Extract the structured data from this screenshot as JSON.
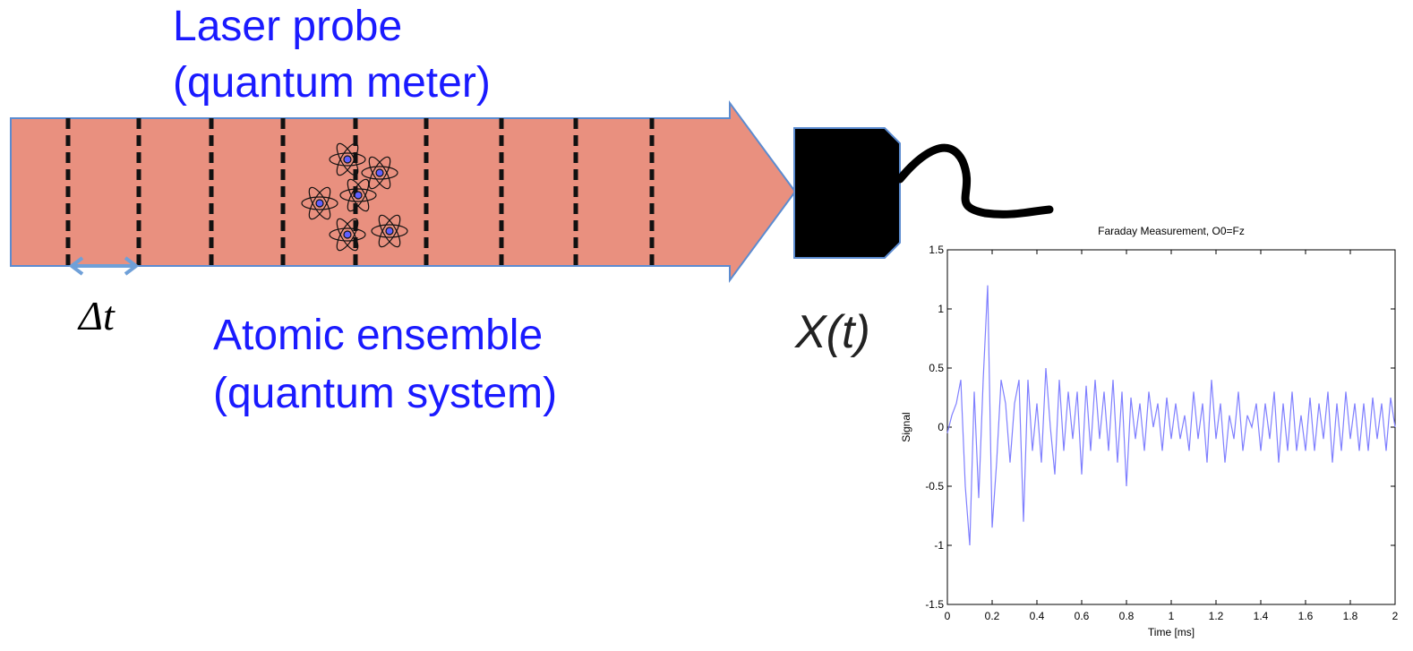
{
  "labels": {
    "probe_line1": "Laser probe",
    "probe_line2": "(quantum meter)",
    "interval": "Δt",
    "ensemble_line1": "Atomic ensemble",
    "ensemble_line2": "(quantum system)",
    "output": "X(t)"
  },
  "chart_data": {
    "type": "line",
    "title": "Faraday Measurement, O0=Fz",
    "x_label": "Time [ms]",
    "y_label": "Signal",
    "x": [
      0,
      0.02,
      0.04,
      0.06,
      0.08,
      0.1,
      0.12,
      0.14,
      0.16,
      0.18,
      0.2,
      0.22,
      0.24,
      0.26,
      0.28,
      0.3,
      0.32,
      0.34,
      0.36,
      0.38,
      0.4,
      0.42,
      0.44,
      0.46,
      0.48,
      0.5,
      0.52,
      0.54,
      0.56,
      0.58,
      0.6,
      0.62,
      0.64,
      0.66,
      0.68,
      0.7,
      0.72,
      0.74,
      0.76,
      0.78,
      0.8,
      0.82,
      0.84,
      0.86,
      0.88,
      0.9,
      0.92,
      0.94,
      0.96,
      0.98,
      1,
      1.02,
      1.04,
      1.06,
      1.08,
      1.1,
      1.12,
      1.14,
      1.16,
      1.18,
      1.2,
      1.22,
      1.24,
      1.26,
      1.28,
      1.3,
      1.32,
      1.34,
      1.36,
      1.38,
      1.4,
      1.42,
      1.44,
      1.46,
      1.48,
      1.5,
      1.52,
      1.54,
      1.56,
      1.58,
      1.6,
      1.62,
      1.64,
      1.66,
      1.68,
      1.7,
      1.72,
      1.74,
      1.76,
      1.78,
      1.8,
      1.82,
      1.84,
      1.86,
      1.88,
      1.9,
      1.92,
      1.94,
      1.96,
      1.98,
      2
    ],
    "series": [
      {
        "name": "Signal",
        "color": "#7f7fff",
        "values": [
          -0.05,
          0.1,
          0.2,
          0.4,
          -0.5,
          -1.0,
          0.3,
          -0.6,
          0.4,
          1.2,
          -0.85,
          -0.3,
          0.4,
          0.2,
          -0.3,
          0.2,
          0.4,
          -0.8,
          0.4,
          -0.2,
          0.2,
          -0.3,
          0.5,
          0.0,
          -0.4,
          0.4,
          -0.2,
          0.3,
          -0.1,
          0.3,
          -0.4,
          0.35,
          -0.2,
          0.4,
          -0.1,
          0.3,
          -0.2,
          0.4,
          -0.3,
          0.3,
          -0.5,
          0.25,
          -0.1,
          0.2,
          -0.2,
          0.3,
          0.0,
          0.2,
          -0.2,
          0.25,
          -0.1,
          0.2,
          -0.1,
          0.1,
          -0.2,
          0.3,
          -0.1,
          0.2,
          -0.3,
          0.4,
          -0.1,
          0.2,
          -0.3,
          0.1,
          -0.1,
          0.3,
          -0.2,
          0.1,
          0.0,
          0.2,
          -0.2,
          0.2,
          -0.1,
          0.3,
          -0.3,
          0.2,
          -0.2,
          0.3,
          -0.2,
          0.1,
          -0.2,
          0.25,
          -0.2,
          0.2,
          -0.1,
          0.3,
          -0.3,
          0.2,
          -0.2,
          0.3,
          -0.1,
          0.2,
          -0.2,
          0.2,
          -0.2,
          0.25,
          -0.1,
          0.2,
          -0.2,
          0.25,
          0.0
        ]
      }
    ],
    "xlim": [
      0,
      2
    ],
    "xticks": [
      0,
      0.2,
      0.4,
      0.6,
      0.8,
      1,
      1.2,
      1.4,
      1.6,
      1.8,
      2
    ],
    "ylim": [
      -1.5,
      1.5
    ],
    "yticks": [
      -1.5,
      -1,
      -0.5,
      0,
      0.5,
      1,
      1.5
    ],
    "grid": false
  }
}
